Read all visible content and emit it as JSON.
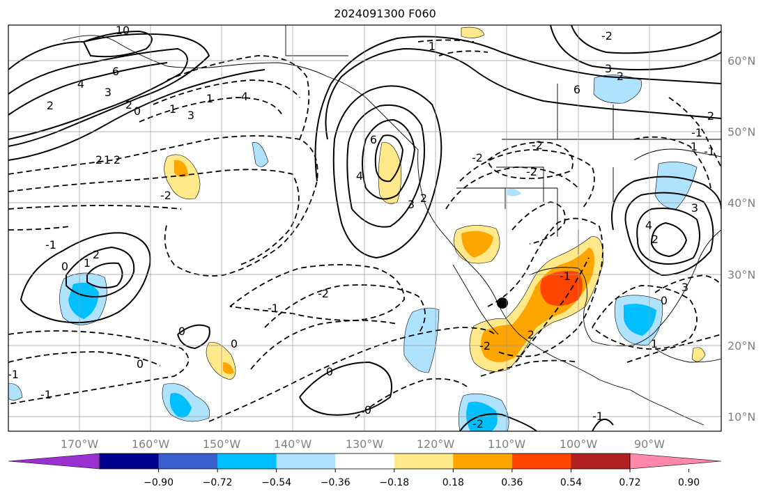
{
  "title": "2024091300 F060",
  "map": {
    "lon_labels": [
      "170°W",
      "160°W",
      "150°W",
      "140°W",
      "130°W",
      "120°W",
      "110°W",
      "100°W",
      "90°W"
    ],
    "lat_labels": [
      "60°N",
      "50°N",
      "40°N",
      "30°N",
      "20°N",
      "10°N"
    ]
  },
  "contour_labels": [
    "10",
    "6",
    "4",
    "3",
    "2",
    "2",
    "1",
    "0",
    "2",
    "3",
    "4",
    "1",
    "2",
    "-2",
    "1",
    "0",
    "6",
    "4",
    "3",
    "2",
    "-2",
    "-2",
    "-1",
    "1",
    "-2",
    "-1",
    "2",
    "0",
    "0",
    "0",
    "0",
    "-1",
    "-1",
    "-1",
    "2",
    "-2",
    "-2",
    "0",
    "-1",
    "1",
    "0",
    "3",
    "2",
    "4",
    "3",
    "2",
    "6",
    "-2",
    "1",
    "-2",
    "3",
    "-1",
    "1",
    "-1",
    "2"
  ],
  "colorbar": {
    "ticks": [
      "−0.90",
      "−0.72",
      "−0.54",
      "−0.36",
      "−0.18",
      "0.18",
      "0.36",
      "0.54",
      "0.72",
      "0.90"
    ],
    "colors": [
      "#9b30d0",
      "#00008b",
      "#3a5fcd",
      "#00bfff",
      "#aee2ff",
      "#ffffff",
      "#ffe98a",
      "#ffa500",
      "#ff4500",
      "#b22222",
      "#ff88aa"
    ]
  }
}
